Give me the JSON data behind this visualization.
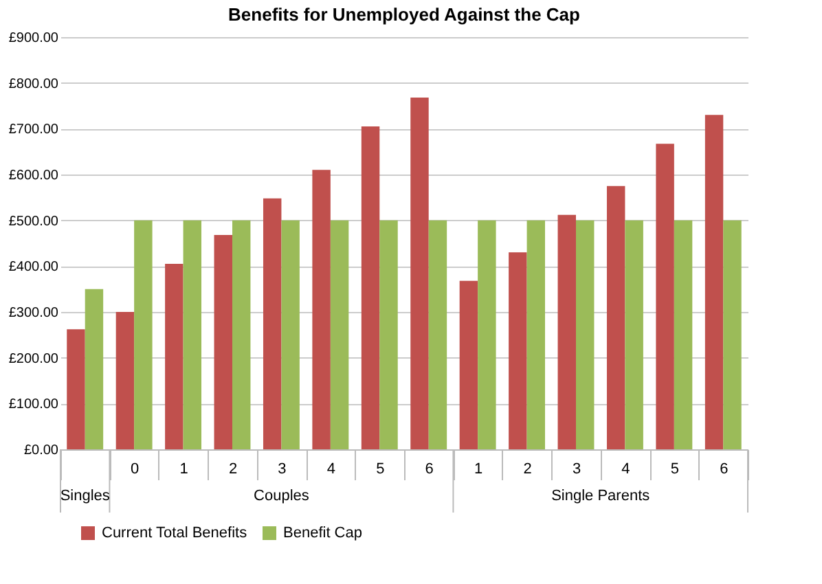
{
  "chart_data": {
    "type": "bar",
    "title": "Benefits for Unemployed Against the Cap",
    "categories": [
      null,
      "0",
      "1",
      "2",
      "3",
      "4",
      "5",
      "6",
      "1",
      "2",
      "3",
      "4",
      "5",
      "6"
    ],
    "series": [
      {
        "name": "Current Total Benefits",
        "color": "#c0504d",
        "values": [
          262,
          300,
          405,
          468,
          548,
          610,
          705,
          768,
          368,
          430,
          512,
          575,
          667,
          730
        ]
      },
      {
        "name": "Benefit Cap",
        "color": "#9bbb59",
        "values": [
          350,
          500,
          500,
          500,
          500,
          500,
          500,
          500,
          500,
          500,
          500,
          500,
          500,
          500
        ]
      }
    ],
    "annotations": [
      "Singles",
      "Couples",
      "Single Parents"
    ],
    "ylim": [
      0,
      900
    ],
    "yticks": [
      {
        "value": 0,
        "label": "£0.00"
      },
      {
        "value": 100,
        "label": "£100.00"
      },
      {
        "value": 200,
        "label": "£200.00"
      },
      {
        "value": 300,
        "label": "£300.00"
      },
      {
        "value": 400,
        "label": "£400.00"
      },
      {
        "value": 500,
        "label": "£500.00"
      },
      {
        "value": 600,
        "label": "£600.00"
      },
      {
        "value": 700,
        "label": "£700.00"
      },
      {
        "value": 800,
        "label": "£800.00"
      },
      {
        "value": 900,
        "label": "£900.00"
      }
    ],
    "grid": "y",
    "legend": "bottom"
  }
}
